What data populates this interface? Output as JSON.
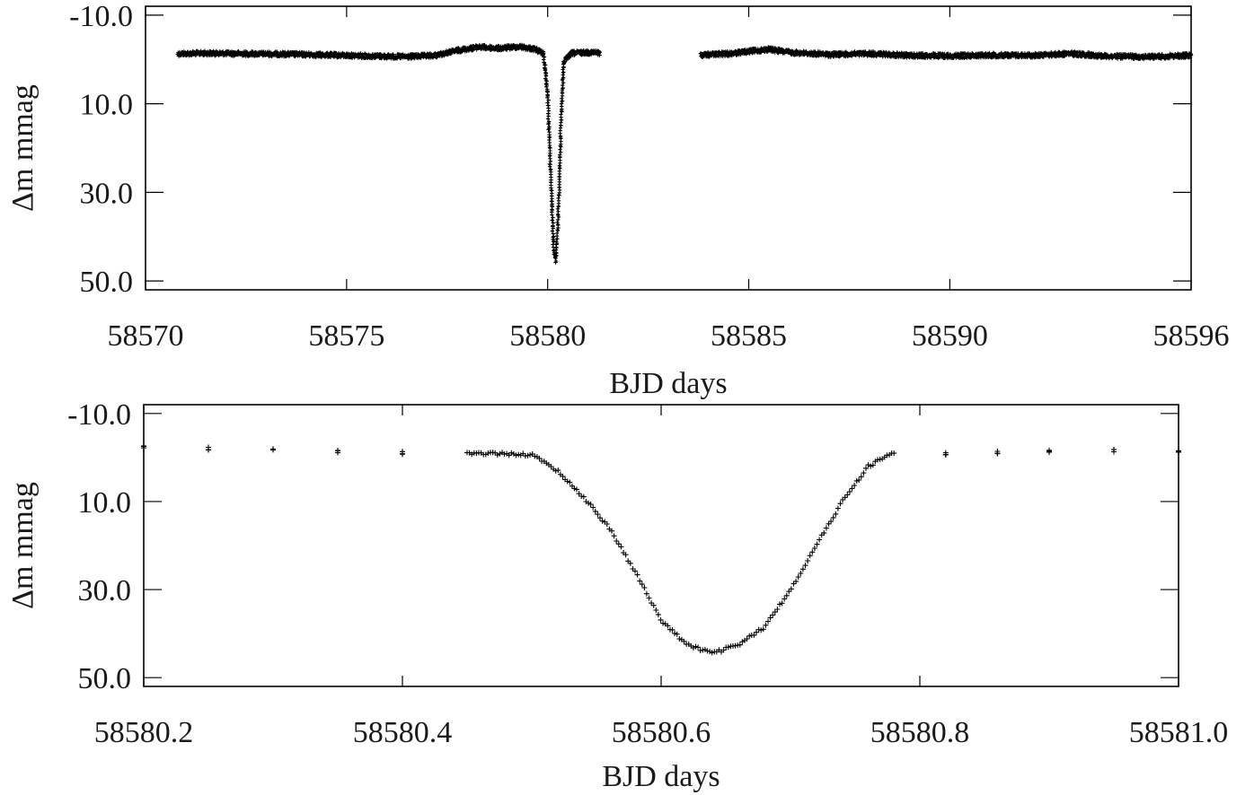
{
  "chart_data": [
    {
      "type": "scatter",
      "title": "",
      "xlabel": "BJD days",
      "ylabel": "Δm mmag",
      "xlim": [
        58570.0,
        58596.0
      ],
      "ylim": [
        50.0,
        -10.0
      ],
      "y_inverted": true,
      "xticks": [
        "58570",
        "58575",
        "58580",
        "58585",
        "58590",
        "58596"
      ],
      "xtick_values": [
        58570,
        58575,
        58580,
        58585,
        58590,
        58596
      ],
      "yticks": [
        "-10.0",
        "10.0",
        "30.0",
        "50.0"
      ],
      "ytick_values": [
        -10,
        10,
        30,
        50
      ],
      "grid": false,
      "marker": "+",
      "color": "#000000",
      "series": [
        {
          "points": [
            [
              58570.8,
              -1.3
            ],
            [
              58571.5,
              -1.4
            ],
            [
              58572.5,
              -1.3
            ],
            [
              58573.5,
              -1.2
            ],
            [
              58574.5,
              -1.0
            ],
            [
              58575.5,
              -0.8
            ],
            [
              58576.5,
              -0.6
            ],
            [
              58577.2,
              -0.9
            ],
            [
              58577.8,
              -2.1
            ],
            [
              58578.3,
              -2.8
            ],
            [
              58578.8,
              -2.5
            ],
            [
              58579.3,
              -2.9
            ],
            [
              58579.7,
              -2.3
            ],
            [
              58579.9,
              -1.2
            ],
            [
              58580.0,
              8.0
            ],
            [
              58580.05,
              20.0
            ],
            [
              58580.1,
              32.0
            ],
            [
              58580.15,
              43.0
            ],
            [
              58580.2,
              45.5
            ],
            [
              58580.25,
              38.0
            ],
            [
              58580.3,
              24.0
            ],
            [
              58580.35,
              10.0
            ],
            [
              58580.4,
              0.5
            ],
            [
              58580.6,
              -1.4
            ],
            [
              58581.0,
              -1.6
            ],
            [
              58581.3,
              -1.5
            ],
            [
              58583.8,
              -1.0
            ],
            [
              58584.5,
              -1.3
            ],
            [
              58585.0,
              -1.8
            ],
            [
              58585.5,
              -2.3
            ],
            [
              58586.0,
              -1.6
            ],
            [
              58587.0,
              -1.1
            ],
            [
              58588.0,
              -1.3
            ],
            [
              58589.0,
              -0.9
            ],
            [
              58590.0,
              -0.8
            ],
            [
              58591.0,
              -1.0
            ],
            [
              58592.0,
              -0.9
            ],
            [
              58593.0,
              -1.3
            ],
            [
              58594.0,
              -0.7
            ],
            [
              58595.0,
              -0.6
            ],
            [
              58596.0,
              -0.9
            ]
          ]
        }
      ]
    },
    {
      "type": "scatter",
      "title": "",
      "xlabel": "BJD days",
      "ylabel": "Δm mmag",
      "xlim": [
        58580.2,
        58581.0
      ],
      "ylim": [
        50.0,
        -10.0
      ],
      "y_inverted": true,
      "xticks": [
        "58580.2",
        "58580.4",
        "58580.6",
        "58580.8",
        "58581.0"
      ],
      "xtick_values": [
        58580.2,
        58580.4,
        58580.6,
        58580.8,
        58581.0
      ],
      "yticks": [
        "-10.0",
        "10.0",
        "30.0",
        "50.0"
      ],
      "ytick_values": [
        -10,
        10,
        30,
        50
      ],
      "grid": false,
      "marker": "+",
      "color": "#000000",
      "series": [
        {
          "points": [
            [
              58580.2,
              -2.3
            ],
            [
              58580.25,
              -2.0
            ],
            [
              58580.3,
              -1.6
            ],
            [
              58580.35,
              -1.3
            ],
            [
              58580.4,
              -1.1
            ],
            [
              58580.45,
              -0.9
            ],
            [
              58580.48,
              -0.9
            ],
            [
              58580.5,
              -0.6
            ],
            [
              58580.52,
              3.0
            ],
            [
              58580.54,
              9.0
            ],
            [
              58580.56,
              16.0
            ],
            [
              58580.58,
              26.0
            ],
            [
              58580.6,
              37.0
            ],
            [
              58580.62,
              42.5
            ],
            [
              58580.64,
              44.5
            ],
            [
              58580.66,
              42.5
            ],
            [
              58580.68,
              38.5
            ],
            [
              58580.7,
              30.0
            ],
            [
              58580.72,
              20.0
            ],
            [
              58580.74,
              10.0
            ],
            [
              58580.76,
              2.0
            ],
            [
              58580.78,
              -1.2
            ],
            [
              58580.82,
              -0.9
            ],
            [
              58580.86,
              -1.1
            ],
            [
              58580.9,
              -1.3
            ],
            [
              58580.95,
              -1.6
            ],
            [
              58581.0,
              -1.4
            ]
          ]
        }
      ]
    }
  ]
}
